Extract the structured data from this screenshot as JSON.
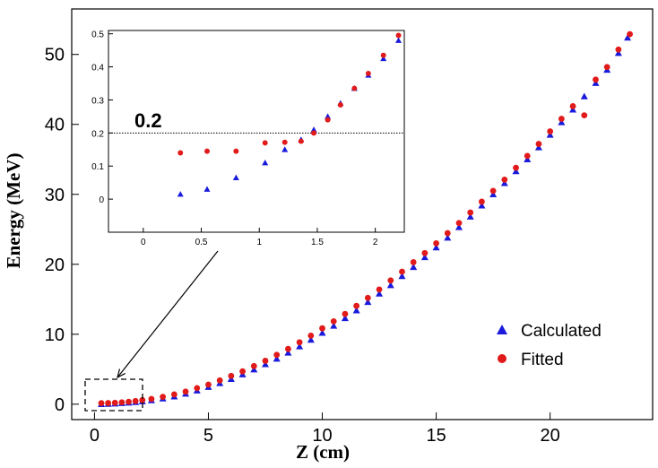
{
  "chart_data": [
    {
      "type": "scatter",
      "title": "",
      "xlabel": "Z (cm)",
      "ylabel": "Energy (MeV)",
      "xlim": [
        -1.0,
        24.5
      ],
      "ylim": [
        -2.2,
        56.5
      ],
      "x_ticks": [
        "0",
        "5",
        "10",
        "15",
        "20"
      ],
      "y_ticks": [
        "0",
        "10",
        "20",
        "30",
        "40",
        "50"
      ],
      "grid": false,
      "legend_position": "bottom-right",
      "series": [
        {
          "name": "Calculated",
          "marker": "triangle",
          "color": "#1a1adc",
          "x": [
            0.3,
            0.6,
            0.9,
            1.2,
            1.5,
            1.8,
            2.1,
            2.5,
            3.0,
            3.5,
            4.0,
            4.5,
            5.0,
            5.5,
            6.0,
            6.5,
            7.0,
            7.5,
            8.0,
            8.5,
            9.0,
            9.5,
            10.0,
            10.5,
            11.0,
            11.5,
            12.0,
            12.5,
            13.0,
            13.5,
            14.0,
            14.5,
            15.0,
            15.5,
            16.0,
            16.5,
            17.0,
            17.5,
            18.0,
            18.5,
            19.0,
            19.5,
            20.0,
            20.5,
            21.0,
            21.5,
            22.0,
            22.5,
            23.0,
            23.4
          ],
          "y": [
            0.0,
            0.03,
            0.08,
            0.15,
            0.22,
            0.3,
            0.4,
            0.55,
            0.8,
            1.1,
            1.5,
            1.95,
            2.45,
            3.0,
            3.6,
            4.25,
            4.95,
            5.7,
            6.5,
            7.35,
            8.25,
            9.2,
            10.2,
            11.2,
            12.3,
            13.4,
            14.6,
            15.8,
            17.0,
            18.3,
            19.6,
            21.0,
            22.4,
            23.8,
            25.3,
            26.8,
            28.4,
            30.0,
            31.6,
            33.3,
            35.0,
            36.7,
            38.5,
            40.3,
            42.1,
            44.0,
            45.9,
            47.8,
            50.2,
            52.4
          ]
        },
        {
          "name": "Fitted",
          "marker": "circle",
          "color": "#e11a1a",
          "x": [
            0.3,
            0.6,
            0.9,
            1.2,
            1.5,
            1.8,
            2.1,
            2.5,
            3.0,
            3.5,
            4.0,
            4.5,
            5.0,
            5.5,
            6.0,
            6.5,
            7.0,
            7.5,
            8.0,
            8.5,
            9.0,
            9.5,
            10.0,
            10.5,
            11.0,
            11.5,
            12.0,
            12.5,
            13.0,
            13.5,
            14.0,
            14.5,
            15.0,
            15.5,
            16.0,
            16.5,
            17.0,
            17.5,
            18.0,
            18.5,
            19.0,
            19.5,
            20.0,
            20.5,
            21.0,
            21.5,
            22.0,
            22.5,
            23.0,
            23.5
          ],
          "y": [
            0.15,
            0.16,
            0.2,
            0.27,
            0.35,
            0.45,
            0.58,
            0.75,
            1.05,
            1.4,
            1.8,
            2.3,
            2.8,
            3.4,
            4.05,
            4.7,
            5.45,
            6.2,
            7.05,
            7.9,
            8.85,
            9.8,
            10.85,
            11.85,
            12.9,
            14.05,
            15.2,
            16.4,
            17.7,
            18.95,
            20.3,
            21.6,
            23.0,
            24.45,
            25.9,
            27.4,
            28.95,
            30.5,
            32.1,
            33.8,
            35.5,
            37.2,
            39.0,
            40.8,
            42.6,
            41.3,
            46.4,
            48.2,
            50.7,
            52.9
          ]
        }
      ]
    },
    {
      "type": "scatter",
      "title": "",
      "xlim": [
        -0.3,
        2.25
      ],
      "ylim": [
        -0.1,
        0.51
      ],
      "x_ticks": [
        "0",
        "0.5",
        "1",
        "1.5",
        "2"
      ],
      "y_ticks": [
        "0",
        "0.1",
        "0.2",
        "0.3",
        "0.4",
        "0.5"
      ],
      "reference_line": {
        "y": 0.2,
        "style": "dotted",
        "label": "0.2"
      },
      "series": [
        {
          "name": "Calculated",
          "marker": "triangle",
          "color": "#1a1adc",
          "x": [
            0.32,
            0.55,
            0.8,
            1.05,
            1.22,
            1.36,
            1.47,
            1.59,
            1.7,
            1.82,
            1.94,
            2.07,
            2.2
          ],
          "y": [
            0.015,
            0.03,
            0.065,
            0.11,
            0.15,
            0.18,
            0.21,
            0.25,
            0.29,
            0.335,
            0.375,
            0.425,
            0.48
          ]
        },
        {
          "name": "Fitted",
          "marker": "circle",
          "color": "#e11a1a",
          "x": [
            0.32,
            0.55,
            0.8,
            1.05,
            1.22,
            1.36,
            1.47,
            1.59,
            1.7,
            1.82,
            1.94,
            2.07,
            2.2
          ],
          "y": [
            0.14,
            0.145,
            0.145,
            0.17,
            0.172,
            0.175,
            0.2,
            0.24,
            0.285,
            0.335,
            0.38,
            0.435,
            0.495
          ]
        }
      ]
    }
  ]
}
